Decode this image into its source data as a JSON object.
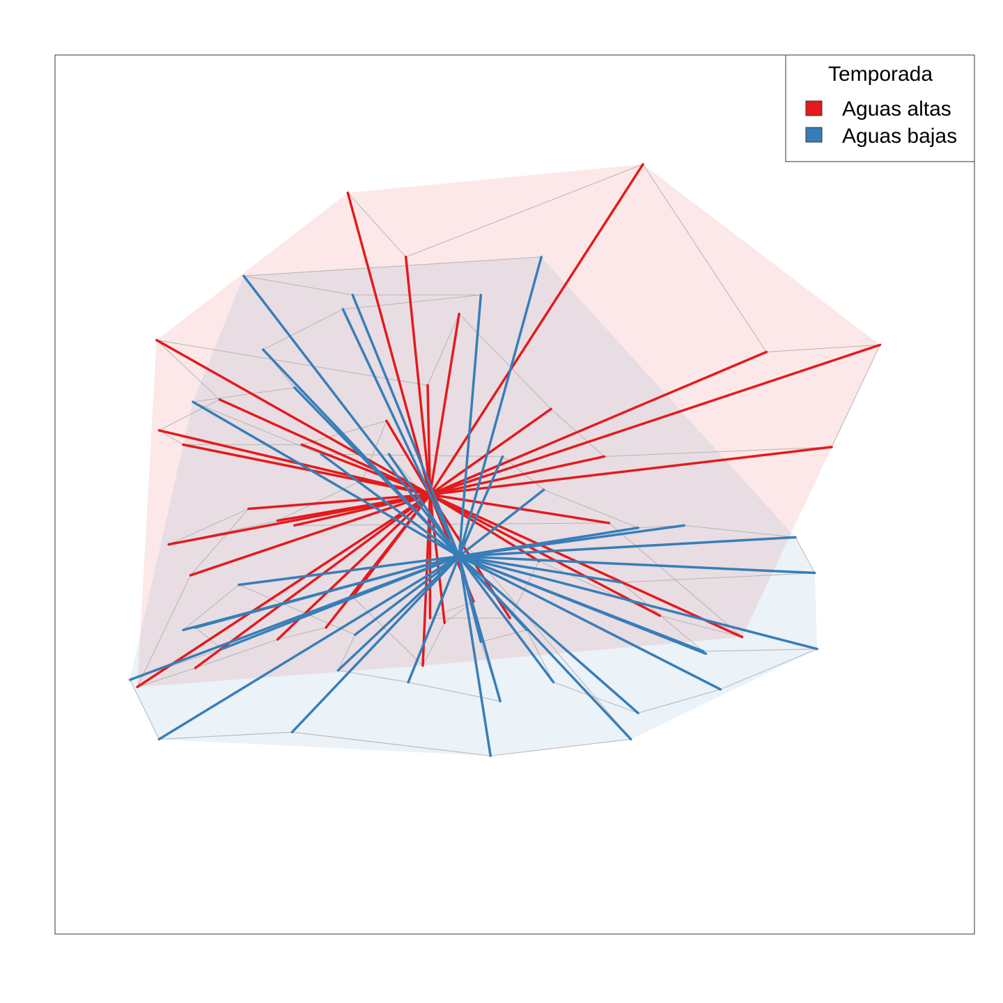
{
  "chart_data": {
    "type": "scatter",
    "subtype": "ordination spider plot with group convex hulls",
    "title": "",
    "xlabel": "",
    "ylabel": "",
    "axes_shown": false,
    "grid": false,
    "legend": {
      "title": "Temporada",
      "position": "top-right",
      "entries": [
        {
          "label": "Aguas altas",
          "color": "#e41a1c"
        },
        {
          "label": "Aguas bajas",
          "color": "#377eb8"
        }
      ]
    },
    "colors": {
      "Aguas altas": "#e41a1c",
      "Aguas bajas": "#377eb8",
      "grey_link": "#b4b4b4"
    },
    "series": [
      {
        "group": "Aguas altas",
        "centroid": [
          0.0,
          0.0
        ],
        "points": [
          [
            -0.34,
            1.27
          ],
          [
            -0.1,
            1.0
          ],
          [
            0.88,
            1.39
          ],
          [
            1.39,
            0.6
          ],
          [
            1.86,
            0.63
          ],
          [
            1.66,
            0.2
          ],
          [
            0.72,
            0.16
          ],
          [
            0.5,
            0.36
          ],
          [
            0.12,
            0.76
          ],
          [
            -0.01,
            0.46
          ],
          [
            -1.13,
            0.65
          ],
          [
            -0.87,
            0.4
          ],
          [
            -1.12,
            0.27
          ],
          [
            -1.02,
            0.21
          ],
          [
            -0.53,
            0.21
          ],
          [
            -0.18,
            0.31
          ],
          [
            -0.28,
            0.06
          ],
          [
            -0.63,
            -0.11
          ],
          [
            -1.08,
            -0.21
          ],
          [
            -0.75,
            -0.06
          ],
          [
            -0.99,
            -0.34
          ],
          [
            -1.21,
            -0.81
          ],
          [
            -0.97,
            -0.73
          ],
          [
            -0.63,
            -0.61
          ],
          [
            -0.43,
            -0.56
          ],
          [
            -0.32,
            -0.43
          ],
          [
            -0.03,
            -0.72
          ],
          [
            0.06,
            -0.54
          ],
          [
            0.18,
            -0.45
          ],
          [
            0.0,
            -0.52
          ],
          [
            0.33,
            -0.52
          ],
          [
            0.45,
            -0.28
          ],
          [
            0.95,
            -0.51
          ],
          [
            1.29,
            -0.6
          ],
          [
            0.74,
            -0.12
          ],
          [
            -0.56,
            -0.13
          ]
        ]
      },
      {
        "group": "Aguas bajas",
        "centroid": [
          0.12,
          -0.26
        ],
        "points": [
          [
            0.46,
            1.0
          ],
          [
            -0.77,
            0.92
          ],
          [
            -0.32,
            0.84
          ],
          [
            0.21,
            0.84
          ],
          [
            -0.36,
            0.78
          ],
          [
            -0.69,
            0.61
          ],
          [
            -0.56,
            0.45
          ],
          [
            -0.98,
            0.39
          ],
          [
            -0.45,
            0.17
          ],
          [
            0.3,
            0.16
          ],
          [
            0.47,
            0.02
          ],
          [
            0.86,
            -0.14
          ],
          [
            1.05,
            -0.13
          ],
          [
            1.51,
            -0.18
          ],
          [
            1.59,
            -0.33
          ],
          [
            0.79,
            -0.37
          ],
          [
            1.14,
            -0.67
          ],
          [
            1.13,
            -0.66
          ],
          [
            1.6,
            -0.65
          ],
          [
            1.2,
            -0.82
          ],
          [
            0.86,
            -0.92
          ],
          [
            0.51,
            -0.79
          ],
          [
            0.4,
            -0.57
          ],
          [
            0.21,
            -0.62
          ],
          [
            0.29,
            -0.87
          ],
          [
            -0.09,
            -0.79
          ],
          [
            -0.38,
            -0.74
          ],
          [
            -0.31,
            -0.59
          ],
          [
            -0.79,
            -0.38
          ],
          [
            -1.02,
            -0.57
          ],
          [
            -0.97,
            -0.56
          ],
          [
            -0.86,
            -0.65
          ],
          [
            -1.24,
            -0.78
          ],
          [
            -1.12,
            -1.03
          ],
          [
            -0.57,
            -1.0
          ],
          [
            0.25,
            -1.1
          ],
          [
            0.83,
            -1.03
          ],
          [
            -0.17,
            0.17
          ]
        ]
      }
    ],
    "hulls": [
      {
        "group": "Aguas altas",
        "fill": "#e41a1c",
        "fill_opacity": 0.1
      },
      {
        "group": "Aguas bajas",
        "fill": "#377eb8",
        "fill_opacity": 0.1
      }
    ],
    "xlim": [
      -1.55,
      2.25
    ],
    "ylim": [
      -1.85,
      1.85
    ]
  }
}
